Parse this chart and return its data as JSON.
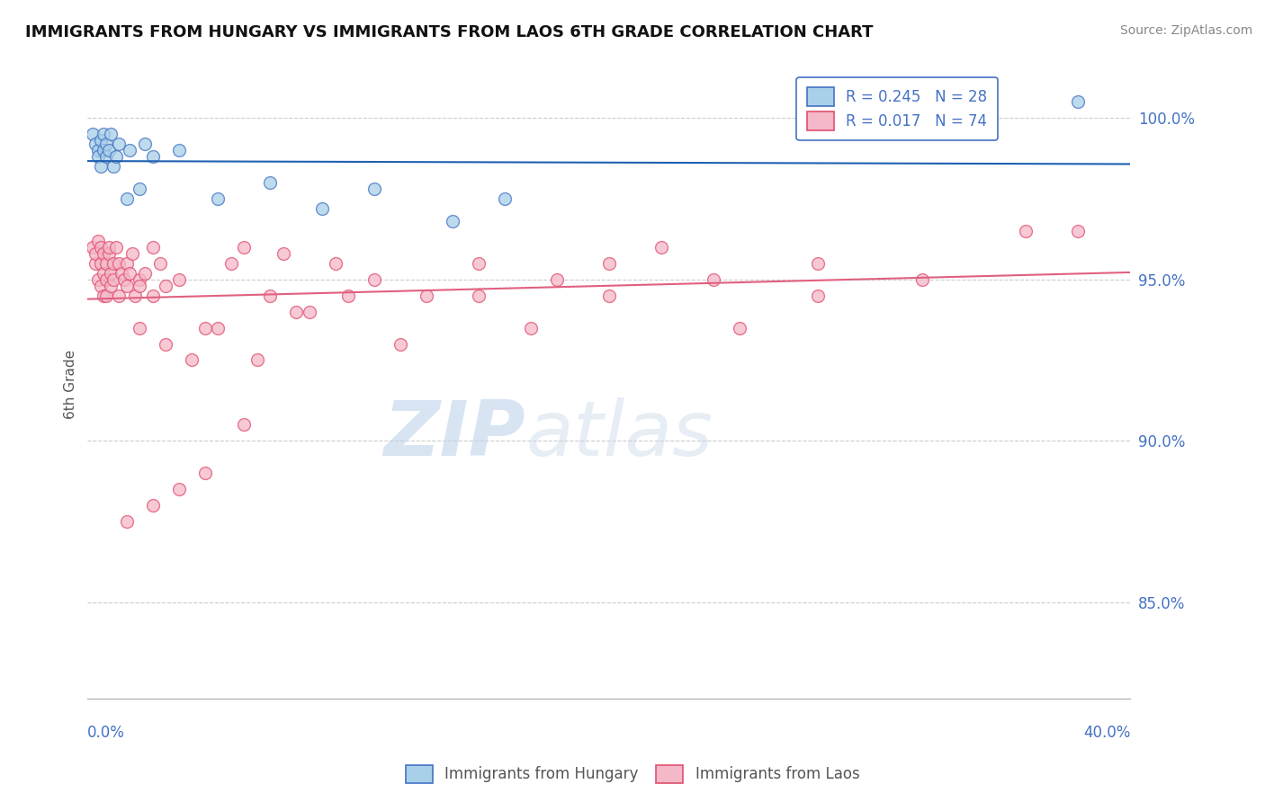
{
  "title": "IMMIGRANTS FROM HUNGARY VS IMMIGRANTS FROM LAOS 6TH GRADE CORRELATION CHART",
  "source": "Source: ZipAtlas.com",
  "ylabel": "6th Grade",
  "xlim": [
    0.0,
    40.0
  ],
  "ylim": [
    82.0,
    101.5
  ],
  "yticks": [
    85.0,
    90.0,
    95.0,
    100.0
  ],
  "ytick_labels": [
    "85.0%",
    "90.0%",
    "95.0%",
    "100.0%"
  ],
  "legend_hungary": "R = 0.245   N = 28",
  "legend_laos": "R = 0.017   N = 74",
  "hungary_color": "#a8d0e8",
  "hungary_edge": "#4472c4",
  "laos_color": "#f4b8c8",
  "laos_edge": "#e05070",
  "hungary_trend_color": "#2060b0",
  "laos_trend_color": "#e06080",
  "watermark_zip": "ZIP",
  "watermark_atlas": "atlas",
  "hungary_x": [
    0.2,
    0.3,
    0.4,
    0.4,
    0.5,
    0.5,
    0.6,
    0.6,
    0.7,
    0.7,
    0.8,
    0.9,
    1.0,
    1.1,
    1.2,
    1.5,
    1.6,
    2.0,
    2.2,
    2.5,
    3.5,
    5.0,
    7.0,
    9.0,
    11.0,
    14.0,
    16.0,
    38.0
  ],
  "hungary_y": [
    99.5,
    99.2,
    99.0,
    98.8,
    99.3,
    98.5,
    99.5,
    99.0,
    99.2,
    98.8,
    99.0,
    99.5,
    98.5,
    98.8,
    99.2,
    97.5,
    99.0,
    97.8,
    99.2,
    98.8,
    99.0,
    97.5,
    98.0,
    97.2,
    97.8,
    96.8,
    97.5,
    100.5
  ],
  "laos_x": [
    0.2,
    0.3,
    0.3,
    0.4,
    0.4,
    0.5,
    0.5,
    0.5,
    0.6,
    0.6,
    0.6,
    0.7,
    0.7,
    0.7,
    0.8,
    0.8,
    0.9,
    0.9,
    1.0,
    1.0,
    1.1,
    1.2,
    1.2,
    1.3,
    1.4,
    1.5,
    1.5,
    1.6,
    1.7,
    1.8,
    2.0,
    2.0,
    2.2,
    2.5,
    2.5,
    2.8,
    3.0,
    3.5,
    4.5,
    5.5,
    6.0,
    7.0,
    7.5,
    8.5,
    9.5,
    11.0,
    13.0,
    15.0,
    18.0,
    20.0,
    22.0,
    25.0,
    28.0,
    32.0,
    36.0,
    2.0,
    3.0,
    4.0,
    5.0,
    6.5,
    8.0,
    10.0,
    12.0,
    15.0,
    17.0,
    20.0,
    24.0,
    28.0,
    1.5,
    2.5,
    3.5,
    4.5,
    6.0,
    38.0
  ],
  "laos_y": [
    96.0,
    95.5,
    95.8,
    96.2,
    95.0,
    95.5,
    96.0,
    94.8,
    95.8,
    95.2,
    94.5,
    95.5,
    95.0,
    94.5,
    95.8,
    96.0,
    95.2,
    94.8,
    95.5,
    95.0,
    96.0,
    95.5,
    94.5,
    95.2,
    95.0,
    94.8,
    95.5,
    95.2,
    95.8,
    94.5,
    95.0,
    94.8,
    95.2,
    94.5,
    96.0,
    95.5,
    94.8,
    95.0,
    93.5,
    95.5,
    96.0,
    94.5,
    95.8,
    94.0,
    95.5,
    95.0,
    94.5,
    95.5,
    95.0,
    94.5,
    96.0,
    93.5,
    95.5,
    95.0,
    96.5,
    93.5,
    93.0,
    92.5,
    93.5,
    92.5,
    94.0,
    94.5,
    93.0,
    94.5,
    93.5,
    95.5,
    95.0,
    94.5,
    87.5,
    88.0,
    88.5,
    89.0,
    90.5,
    96.5
  ]
}
